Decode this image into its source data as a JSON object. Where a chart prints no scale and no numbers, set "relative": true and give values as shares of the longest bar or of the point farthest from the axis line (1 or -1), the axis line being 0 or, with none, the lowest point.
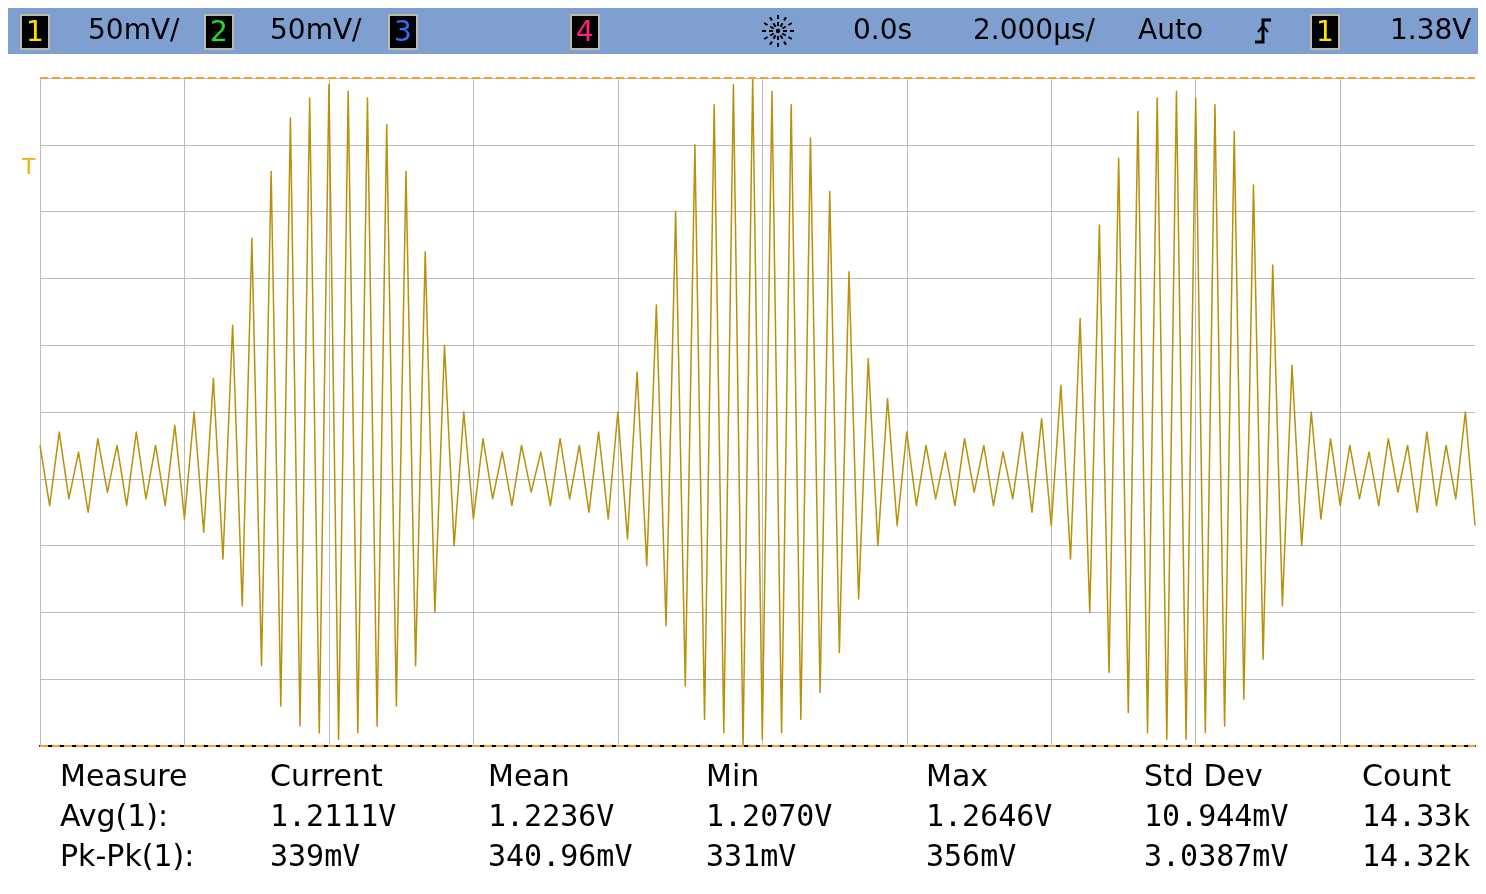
{
  "chart_data": {
    "type": "line",
    "relative": true,
    "grid": true,
    "marker": "none",
    "line_style": "solid",
    "categories": [
      null,
      null,
      null,
      null,
      null,
      null,
      null,
      null,
      null,
      null,
      null,
      null,
      null,
      null,
      null,
      null,
      null,
      null,
      null,
      null,
      null,
      null,
      null,
      null,
      null,
      null,
      null,
      null,
      null,
      null,
      null,
      null,
      null,
      null,
      null,
      null,
      null,
      null,
      null,
      null,
      null,
      null,
      null,
      null,
      null,
      null,
      null,
      null,
      null,
      null,
      null,
      null,
      null,
      null,
      null,
      null,
      null,
      null,
      null,
      null,
      null,
      null,
      null,
      null,
      null,
      null,
      null,
      null,
      null,
      null,
      null,
      null,
      null,
      null,
      null,
      null,
      null,
      null,
      null,
      null,
      null,
      null,
      null,
      null,
      null,
      null,
      null,
      null,
      null,
      null,
      null,
      null,
      null,
      null,
      null,
      null,
      null,
      null,
      null,
      null,
      null,
      null,
      null,
      null,
      null,
      null,
      null,
      null,
      null,
      null,
      null,
      null,
      null,
      null,
      null,
      null,
      null,
      null,
      null,
      null,
      null,
      null,
      null,
      null,
      null,
      null,
      null,
      null,
      null,
      null,
      null,
      null,
      null,
      null,
      null,
      null,
      null,
      null,
      null,
      null,
      null,
      null,
      null,
      null,
      null,
      null,
      null,
      null,
      null,
      null
    ],
    "series": [
      {
        "color": "#b8900a",
        "values": [
          0.45,
          0.36,
          0.47,
          0.37,
          0.44,
          0.35,
          0.46,
          0.38,
          0.45,
          0.36,
          0.47,
          0.37,
          0.45,
          0.36,
          0.48,
          0.34,
          0.5,
          0.32,
          0.55,
          0.28,
          0.63,
          0.21,
          0.76,
          0.12,
          0.86,
          0.06,
          0.94,
          0.03,
          0.97,
          0.02,
          0.99,
          0.01,
          0.98,
          0.02,
          0.97,
          0.03,
          0.93,
          0.06,
          0.86,
          0.12,
          0.74,
          0.2,
          0.6,
          0.3,
          0.5,
          0.34,
          0.46,
          0.37,
          0.44,
          0.36,
          0.45,
          0.38,
          0.44,
          0.36,
          0.46,
          0.37,
          0.45,
          0.35,
          0.47,
          0.34,
          0.5,
          0.31,
          0.56,
          0.27,
          0.66,
          0.18,
          0.8,
          0.09,
          0.9,
          0.04,
          0.96,
          0.02,
          0.99,
          0.0,
          1.0,
          0.01,
          0.98,
          0.02,
          0.96,
          0.04,
          0.91,
          0.08,
          0.83,
          0.14,
          0.71,
          0.22,
          0.58,
          0.3,
          0.52,
          0.33,
          0.47,
          0.36,
          0.45,
          0.37,
          0.44,
          0.36,
          0.46,
          0.38,
          0.45,
          0.36,
          0.44,
          0.37,
          0.47,
          0.35,
          0.49,
          0.33,
          0.54,
          0.28,
          0.64,
          0.2,
          0.78,
          0.11,
          0.88,
          0.05,
          0.95,
          0.02,
          0.97,
          0.01,
          0.98,
          0.01,
          0.97,
          0.02,
          0.96,
          0.03,
          0.92,
          0.07,
          0.84,
          0.13,
          0.72,
          0.21,
          0.57,
          0.3,
          0.5,
          0.34,
          0.46,
          0.36,
          0.45,
          0.37,
          0.44,
          0.36,
          0.46,
          0.38,
          0.45,
          0.35,
          0.47,
          0.36,
          0.45,
          0.37,
          0.5,
          0.33
        ]
      }
    ],
    "ref_lines": [
      {
        "axis": "y",
        "value": 1,
        "color": "#f5a030",
        "line_style": "dashed"
      },
      {
        "axis": "y",
        "value": 0,
        "color": "#f5a030",
        "line_style": "dashed"
      }
    ],
    "annotations": [
      "1",
      "50mV/",
      "2",
      "50mV/",
      "3",
      "4",
      "0.0s",
      "2.000µs/",
      "Auto",
      "1",
      "1.38V",
      "Measure",
      "Current",
      "Mean",
      "Min",
      "Max",
      "Std Dev",
      "Count",
      "Avg(1):",
      "1.2111V",
      "1.2236V",
      "1.2070V",
      "1.2646V",
      "10.944mV",
      "14.33k",
      "Pk-Pk(1):",
      "339mV",
      "340.96mV",
      "331mV",
      "356mV",
      "3.0387mV",
      "14.32k",
      "T"
    ]
  }
}
